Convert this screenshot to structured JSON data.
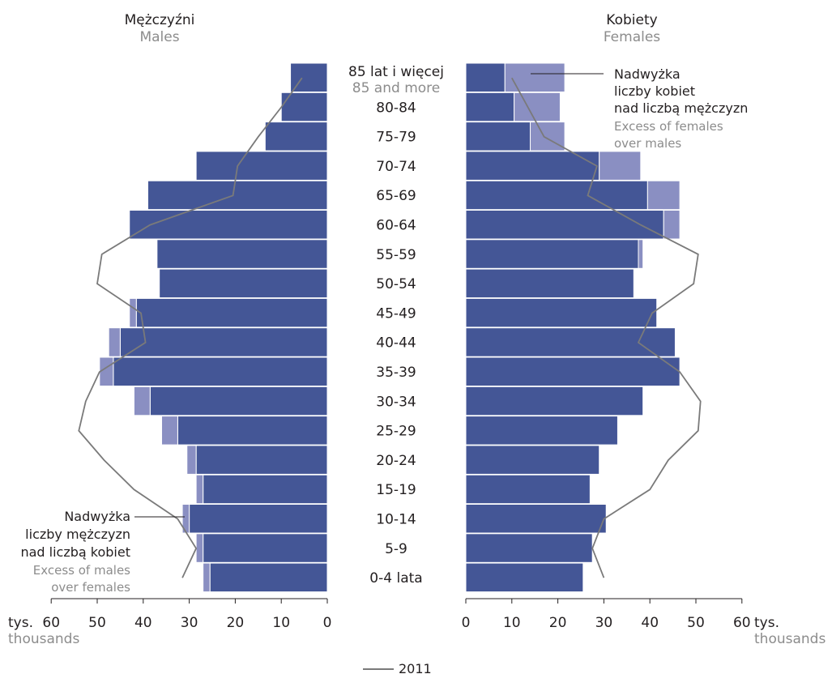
{
  "chart_data": {
    "type": "bar",
    "subtype": "population-pyramid",
    "left_title": "Mężczyźni",
    "left_subtitle": "Males",
    "right_title": "Kobiety",
    "right_subtitle": "Females",
    "categories": [
      {
        "pl": "85 lat i więcej",
        "en": "85 and more"
      },
      {
        "pl": "80-84"
      },
      {
        "pl": "75-79"
      },
      {
        "pl": "70-74"
      },
      {
        "pl": "65-69"
      },
      {
        "pl": "60-64"
      },
      {
        "pl": "55-59"
      },
      {
        "pl": "50-54"
      },
      {
        "pl": "45-49"
      },
      {
        "pl": "40-44"
      },
      {
        "pl": "35-39"
      },
      {
        "pl": "30-34"
      },
      {
        "pl": "25-29"
      },
      {
        "pl": "20-24"
      },
      {
        "pl": "15-19"
      },
      {
        "pl": "10-14"
      },
      {
        "pl": "5-9"
      },
      {
        "pl": "0-4 lata"
      }
    ],
    "series": [
      {
        "side": "males",
        "values": [
          8,
          10,
          13.5,
          28.5,
          39,
          43,
          37,
          36.5,
          41.5,
          45,
          46.5,
          38.5,
          32.5,
          28.5,
          27,
          30,
          27,
          25.5
        ]
      },
      {
        "side": "males-excess",
        "values": [
          0,
          0,
          0,
          0,
          0,
          0,
          0,
          0,
          1.5,
          2.5,
          3,
          3.5,
          3.5,
          2,
          1.5,
          1.5,
          1.5,
          1.5
        ]
      },
      {
        "side": "females",
        "values": [
          8.5,
          10.5,
          14,
          29,
          39.5,
          43,
          37.5,
          36.5,
          41.5,
          45.5,
          46.5,
          38.5,
          33,
          29,
          27,
          30.5,
          27.5,
          25.5
        ]
      },
      {
        "side": "females-excess",
        "values": [
          13,
          10,
          7.5,
          9,
          7,
          3.5,
          1,
          0,
          0,
          0,
          0,
          0,
          0,
          0,
          0,
          0,
          0,
          0
        ]
      },
      {
        "name": "2011",
        "side": "males-line",
        "values": [
          5.5,
          10,
          15,
          19.5,
          20.5,
          38.5,
          49,
          50,
          40.5,
          39.5,
          49.5,
          52.5,
          54,
          48.5,
          42,
          32.5,
          28.5,
          31.5
        ]
      },
      {
        "name": "2011",
        "side": "females-line",
        "values": [
          10,
          13.5,
          17,
          28.5,
          26.5,
          38,
          50.5,
          49.5,
          40.5,
          37.5,
          46.5,
          51,
          50.5,
          44,
          40,
          30,
          27.5,
          30
        ]
      }
    ],
    "x_ticks": [
      60,
      50,
      40,
      30,
      20,
      10,
      0
    ],
    "x_ticks_right": [
      0,
      10,
      20,
      30,
      40,
      50,
      60
    ],
    "xlim": [
      0,
      60
    ],
    "unit_pl": "tys.",
    "unit_en": "thousands",
    "annotation_female": {
      "pl": [
        "Nadwyżka",
        "liczby kobiet",
        "nad liczbą mężczyzn"
      ],
      "en": [
        "Excess of females",
        "over males"
      ]
    },
    "annotation_male": {
      "pl": [
        "Nadwyżka",
        "liczby mężczyzn",
        "nad liczbą kobiet"
      ],
      "en": [
        "Excess of males",
        "over females"
      ]
    },
    "legend": {
      "line": "2011",
      "position": "bottom-center"
    },
    "colors": {
      "bar": "#445696",
      "excess": "#8a8fc2",
      "line": "#7a7a7a",
      "text": "#231f20",
      "subtext": "#8c8c8c"
    }
  }
}
